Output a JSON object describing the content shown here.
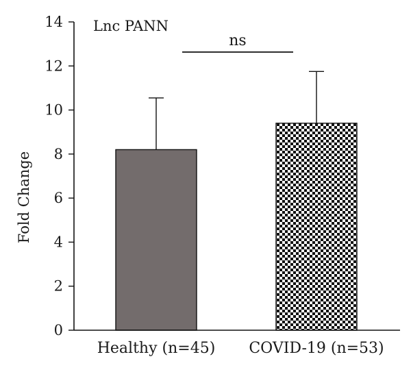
{
  "chart_data": {
    "type": "bar",
    "title": "Lnc PANN",
    "ylabel": "Fold Change",
    "xlabel": "",
    "ylim": [
      0,
      14
    ],
    "yticks": [
      0,
      2,
      4,
      6,
      8,
      10,
      12,
      14
    ],
    "yticks_text": [
      "0",
      "2",
      "4",
      "6",
      "8",
      "10",
      "12",
      "14"
    ],
    "grid": false,
    "categories": [
      "Healthy (n=45)",
      "COVID-19 (n=53)"
    ],
    "values": [
      8.2,
      9.4
    ],
    "error": [
      2.35,
      2.35
    ],
    "bar_styles": [
      "solid",
      "checkered"
    ],
    "colors": {
      "bar_solid": "#736c6c",
      "edge": "#111111",
      "pattern_dark": "#111111",
      "pattern_light": "#ffffff"
    },
    "significance": {
      "label": "ns",
      "between": [
        0,
        1
      ]
    }
  }
}
